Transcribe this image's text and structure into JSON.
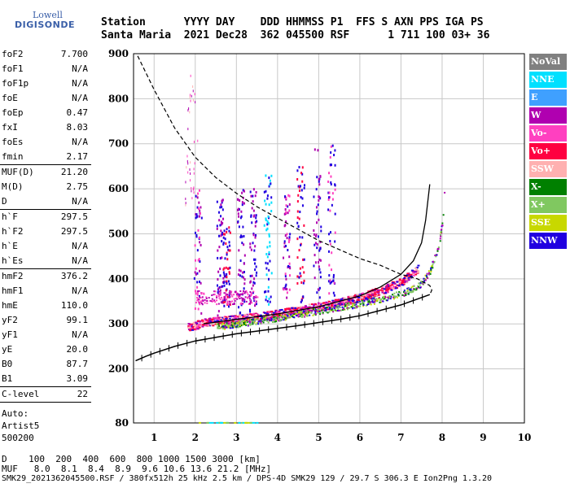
{
  "logo": {
    "line1": "Lowell",
    "line2": "DIGISONDE"
  },
  "header": {
    "row1": "Station      YYYY DAY    DDD HHMMSS P1  FFS S AXN PPS IGA PS",
    "row2": "Santa Maria  2021 Dec28  362 045500 RSF      1 711 100 03+ 36"
  },
  "params": [
    {
      "k": "foF2",
      "v": "7.700"
    },
    {
      "k": "foF1",
      "v": "N/A"
    },
    {
      "k": "foF1p",
      "v": "N/A"
    },
    {
      "k": "foE",
      "v": "N/A"
    },
    {
      "k": "foEp",
      "v": "0.47"
    },
    {
      "k": "fxI",
      "v": "8.03"
    },
    {
      "k": "foEs",
      "v": "N/A"
    },
    {
      "k": "fmin",
      "v": "2.17"
    },
    {
      "k": "MUF(D)",
      "v": "21.20",
      "sep": true
    },
    {
      "k": "M(D)",
      "v": "2.75"
    },
    {
      "k": "D",
      "v": "N/A"
    },
    {
      "k": "h`F",
      "v": "297.5",
      "sep": true
    },
    {
      "k": "h`F2",
      "v": "297.5"
    },
    {
      "k": "h`E",
      "v": "N/A"
    },
    {
      "k": "h`Es",
      "v": "N/A"
    },
    {
      "k": "hmF2",
      "v": "376.2",
      "sep": true
    },
    {
      "k": "hmF1",
      "v": "N/A"
    },
    {
      "k": "hmE",
      "v": "110.0"
    },
    {
      "k": "yF2",
      "v": "99.1"
    },
    {
      "k": "yF1",
      "v": "N/A"
    },
    {
      "k": "yE",
      "v": "20.0"
    },
    {
      "k": "B0",
      "v": "87.7"
    },
    {
      "k": "B1",
      "v": "3.09"
    },
    {
      "k": "C-level",
      "v": "22",
      "sep": true
    }
  ],
  "extra": {
    "auto": "Auto:",
    "artist": "Artist5",
    "version": "500200"
  },
  "legend": [
    {
      "label": "NoVal",
      "color": "#808080"
    },
    {
      "label": "NNE",
      "color": "#00e0ff"
    },
    {
      "label": "E",
      "color": "#3fa0ff"
    },
    {
      "label": "W",
      "color": "#b000b0"
    },
    {
      "label": "Vo-",
      "color": "#ff40c0"
    },
    {
      "label": "Vo+",
      "color": "#ff0040"
    },
    {
      "label": "SSW",
      "color": "#ffb0b0"
    },
    {
      "label": "X-",
      "color": "#008000"
    },
    {
      "label": "X+",
      "color": "#80c860"
    },
    {
      "label": "SSE",
      "color": "#c8d800"
    },
    {
      "label": "NNW",
      "color": "#2000e0"
    }
  ],
  "footer": {
    "row1": "D    100  200  400  600  800 1000 1500 3000 [km]",
    "row2": "MUF   8.0  8.1  8.4  8.9  9.6 10.6 13.6 21.2 [MHz]",
    "row3": "SMK29_2021362045500.RSF / 380fx512h 25 kHz 2.5 km / DPS-4D SMK29 129 / 29.7 S 306.3 E Ion2Png 1.3.20"
  },
  "chart_data": {
    "type": "scatter",
    "xlim": [
      0.5,
      10
    ],
    "ylim": [
      80,
      900
    ],
    "x_ticks": [
      1,
      2,
      3,
      4,
      5,
      6,
      7,
      8,
      9,
      10
    ],
    "y_ticks": [
      80,
      200,
      300,
      400,
      500,
      600,
      700,
      800,
      900
    ],
    "grid": true,
    "legend_placement": "right",
    "series": [
      {
        "kind": "dashed-curve",
        "points": [
          [
            0.6,
            895
          ],
          [
            1.0,
            820
          ],
          [
            1.5,
            735
          ],
          [
            2.0,
            670
          ],
          [
            2.5,
            625
          ],
          [
            3.0,
            590
          ],
          [
            3.5,
            560
          ],
          [
            4.0,
            535
          ],
          [
            4.5,
            510
          ],
          [
            5.0,
            485
          ],
          [
            5.5,
            465
          ],
          [
            6.0,
            445
          ],
          [
            6.5,
            430
          ],
          [
            7.0,
            410
          ],
          [
            7.4,
            400
          ],
          [
            7.7,
            385
          ],
          [
            7.75,
            375
          ],
          [
            7.7,
            365
          ]
        ]
      },
      {
        "kind": "profile-curve",
        "points": [
          [
            0.55,
            218
          ],
          [
            0.8,
            228
          ],
          [
            1.0,
            235
          ],
          [
            1.5,
            250
          ],
          [
            2.0,
            262
          ],
          [
            2.5,
            270
          ],
          [
            3.0,
            278
          ],
          [
            3.5,
            284
          ],
          [
            4.0,
            290
          ],
          [
            4.5,
            296
          ],
          [
            5.0,
            303
          ],
          [
            5.5,
            310
          ],
          [
            6.0,
            318
          ],
          [
            6.5,
            330
          ],
          [
            7.0,
            342
          ],
          [
            7.4,
            355
          ],
          [
            7.7,
            365
          ]
        ]
      },
      {
        "kind": "trace-curve",
        "points": [
          [
            2.2,
            300
          ],
          [
            3.0,
            310
          ],
          [
            4.0,
            322
          ],
          [
            5.0,
            338
          ],
          [
            5.5,
            350
          ],
          [
            6.0,
            362
          ],
          [
            6.5,
            382
          ],
          [
            7.0,
            410
          ],
          [
            7.3,
            440
          ],
          [
            7.5,
            480
          ],
          [
            7.6,
            530
          ],
          [
            7.7,
            610
          ]
        ]
      },
      {
        "kind": "O-trace",
        "points": [
          [
            1.8,
            290
          ],
          [
            2.2,
            300
          ],
          [
            2.6,
            305
          ],
          [
            3.0,
            308
          ],
          [
            3.4,
            312
          ],
          [
            3.8,
            318
          ],
          [
            4.2,
            323
          ],
          [
            4.6,
            330
          ],
          [
            5.0,
            336
          ],
          [
            5.4,
            343
          ],
          [
            5.8,
            352
          ],
          [
            6.2,
            362
          ],
          [
            6.6,
            375
          ],
          [
            7.0,
            392
          ],
          [
            7.2,
            405
          ],
          [
            7.4,
            420
          ]
        ]
      },
      {
        "kind": "X-trace",
        "points": [
          [
            2.5,
            295
          ],
          [
            3.0,
            300
          ],
          [
            3.5,
            308
          ],
          [
            4.0,
            314
          ],
          [
            4.5,
            322
          ],
          [
            5.0,
            330
          ],
          [
            5.5,
            338
          ],
          [
            6.0,
            346
          ],
          [
            6.5,
            356
          ],
          [
            7.0,
            368
          ],
          [
            7.3,
            380
          ],
          [
            7.5,
            392
          ],
          [
            7.7,
            420
          ],
          [
            7.9,
            470
          ],
          [
            8.0,
            530
          ],
          [
            8.05,
            600
          ]
        ]
      }
    ]
  }
}
